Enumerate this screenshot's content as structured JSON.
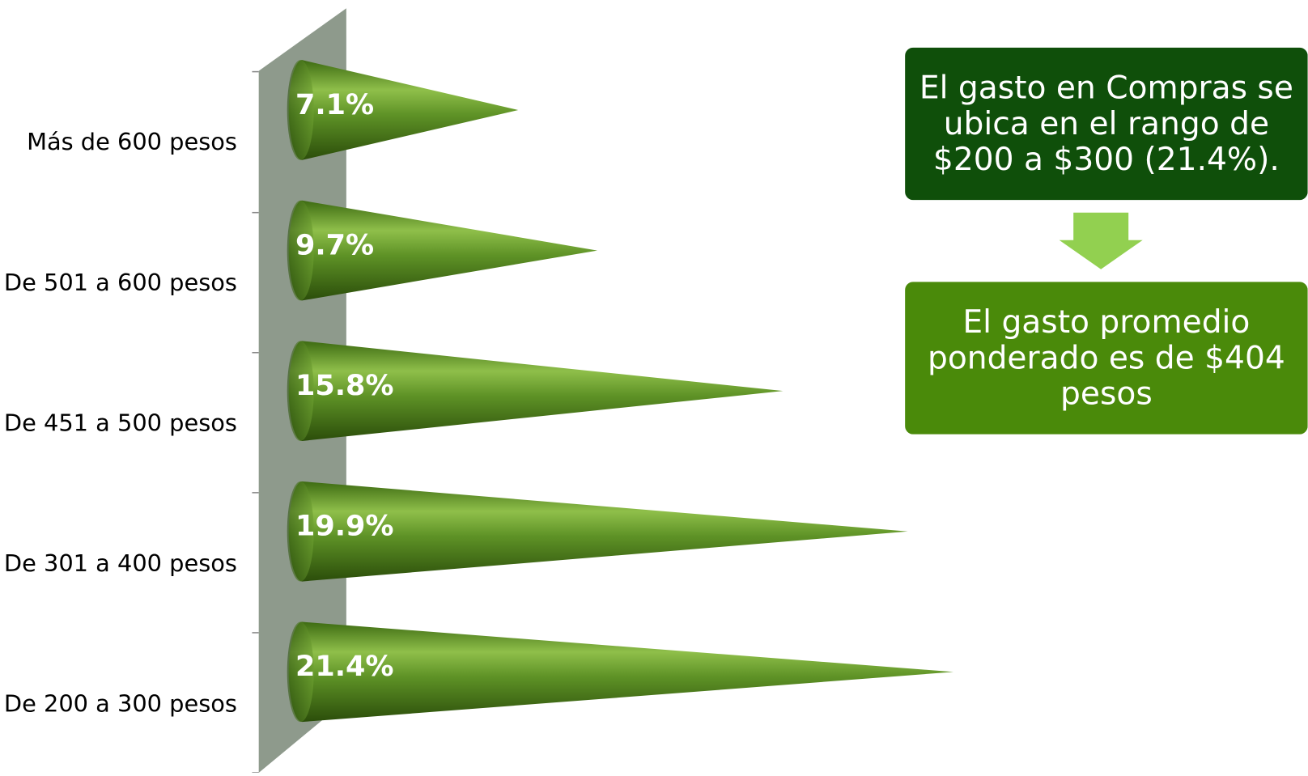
{
  "chart_data": {
    "type": "cone-bar",
    "categories": [
      "Más de 600 pesos",
      "De 501 a 600 pesos",
      "De 451 a 500 pesos",
      "De 301 a 400 pesos",
      "De 200 a 300 pesos"
    ],
    "values": [
      7.1,
      9.7,
      15.8,
      19.9,
      21.4
    ],
    "value_labels": [
      "7.1%",
      "9.7%",
      "15.8%",
      "19.9%",
      "21.4%"
    ],
    "color": "#4f7f1e",
    "annotations": [
      "El gasto en Compras se ubica en el rango de $200 a $300 (21.4%).",
      "El gasto promedio ponderado es de $404 pesos"
    ]
  }
}
